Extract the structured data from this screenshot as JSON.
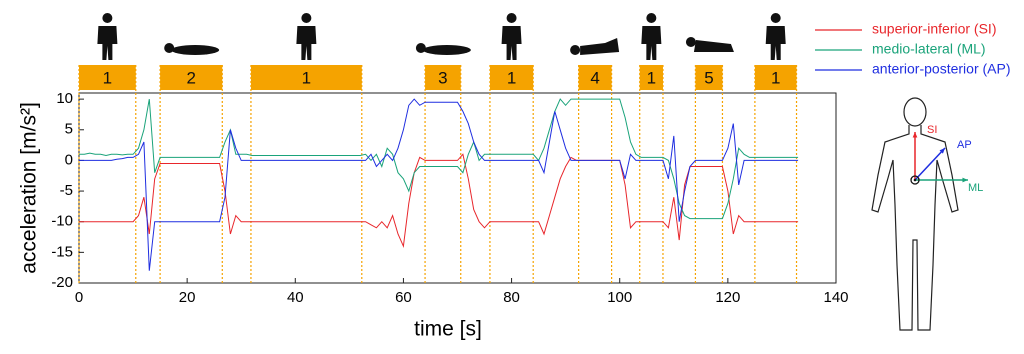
{
  "chart_data": {
    "type": "line",
    "x_label": "time [s]",
    "y_label": "acceleration [m/s²]",
    "xlim": [
      0,
      140
    ],
    "xticks": [
      0,
      20,
      40,
      60,
      80,
      100,
      120,
      140
    ],
    "ylim": [
      -20,
      11
    ],
    "yticks": [
      -20,
      -15,
      -10,
      -5,
      0,
      5,
      10
    ],
    "postures": [
      {
        "label": "1",
        "start": 0,
        "end": 10.5
      },
      {
        "label": "2",
        "start": 15,
        "end": 26.5
      },
      {
        "label": "1",
        "start": 31.8,
        "end": 52.3
      },
      {
        "label": "3",
        "start": 64,
        "end": 70.6
      },
      {
        "label": "1",
        "start": 76,
        "end": 84
      },
      {
        "label": "4",
        "start": 92.4,
        "end": 98.5
      },
      {
        "label": "1",
        "start": 103.7,
        "end": 108
      },
      {
        "label": "5",
        "start": 114,
        "end": 119
      },
      {
        "label": "1",
        "start": 125,
        "end": 132.7
      }
    ],
    "x": [
      0,
      1,
      2,
      3,
      4,
      5,
      6,
      7,
      8,
      9,
      10,
      11,
      12,
      13,
      14,
      15,
      16,
      17,
      18,
      19,
      20,
      21,
      22,
      23,
      24,
      25,
      26,
      27,
      28,
      29,
      30,
      31,
      32,
      33,
      34,
      35,
      36,
      37,
      38,
      39,
      40,
      41,
      42,
      43,
      44,
      45,
      46,
      47,
      48,
      49,
      50,
      51,
      52,
      53,
      54,
      55,
      56,
      57,
      58,
      59,
      60,
      61,
      62,
      63,
      64,
      65,
      66,
      67,
      68,
      69,
      70,
      71,
      72,
      73,
      74,
      75,
      76,
      77,
      78,
      79,
      80,
      81,
      82,
      83,
      84,
      85,
      86,
      87,
      88,
      89,
      90,
      91,
      92,
      93,
      94,
      95,
      96,
      97,
      98,
      99,
      100,
      101,
      102,
      103,
      104,
      105,
      106,
      107,
      108,
      109,
      110,
      111,
      112,
      113,
      114,
      115,
      116,
      117,
      118,
      119,
      120,
      121,
      122,
      123,
      124,
      125,
      126,
      127,
      128,
      129,
      130,
      131,
      132,
      133
    ],
    "series": [
      {
        "name": "superior-inferior (SI)",
        "color": "#e8262b",
        "values": [
          -10,
          -10,
          -10,
          -10,
          -10,
          -10,
          -10,
          -10,
          -10,
          -10,
          -10,
          -9,
          -6,
          -12,
          -3,
          -0.5,
          -0.5,
          -0.5,
          -0.5,
          -0.5,
          -0.5,
          -0.5,
          -0.5,
          -0.5,
          -0.5,
          -0.5,
          -0.5,
          -5,
          -12,
          -9,
          -10,
          -10,
          -10,
          -10,
          -10,
          -10,
          -10,
          -10,
          -10,
          -10,
          -10,
          -10,
          -10,
          -10,
          -10,
          -10,
          -10,
          -10,
          -10,
          -10,
          -10,
          -10,
          -10,
          -10,
          -10.5,
          -11,
          -10,
          -11,
          -9,
          -12,
          -14,
          -7,
          -2,
          0.5,
          0,
          0,
          0,
          0,
          0,
          0,
          0,
          1,
          -3,
          -8,
          -10,
          -11,
          -10,
          -10,
          -10,
          -10,
          -10,
          -10,
          -10,
          -10,
          -10,
          -10,
          -12,
          -9,
          -6,
          -3,
          -1,
          0.5,
          0,
          0,
          0,
          0,
          0,
          0,
          0,
          0,
          0,
          -4,
          -11,
          -10,
          -10,
          -10,
          -10,
          -10,
          -10,
          -11,
          -6,
          -13,
          -4,
          -1,
          -1,
          -1,
          -1,
          -1,
          -1,
          -1,
          -5,
          -12,
          -9,
          -10,
          -10,
          -10,
          -10,
          -10,
          -10,
          -10,
          -10,
          -10,
          -10,
          -10
        ]
      },
      {
        "name": "medio-lateral (ML)",
        "color": "#1aa37a",
        "values": [
          1,
          1,
          1.2,
          1,
          1,
          0.8,
          1,
          1,
          0.9,
          1,
          1,
          2,
          5,
          10,
          -2,
          0.5,
          0.5,
          0.5,
          0.5,
          0.5,
          0.5,
          0.5,
          0.5,
          0.5,
          0.5,
          0.5,
          0.5,
          3,
          5,
          1,
          1,
          1,
          0.8,
          0.8,
          0.8,
          0.8,
          0.8,
          0.8,
          0.8,
          0.8,
          0.8,
          0.8,
          0.8,
          0.8,
          0.8,
          0.8,
          0.8,
          0.8,
          0.8,
          0.8,
          0.8,
          0.8,
          0.8,
          1,
          0,
          1,
          -1,
          2,
          1,
          -2,
          -3,
          -5,
          -2,
          -1,
          -1,
          -1,
          -1,
          -1,
          -1,
          -1,
          -1,
          -2,
          1,
          3,
          0,
          1,
          1,
          1,
          1,
          1,
          1,
          1,
          1,
          1,
          1,
          0,
          2,
          5,
          8,
          10,
          9,
          10,
          10,
          10,
          10,
          10,
          10,
          10,
          10,
          10,
          10,
          7,
          3,
          1,
          0.5,
          0.5,
          0.5,
          0.5,
          0.5,
          0,
          -3,
          -7,
          -9,
          -9.5,
          -9.5,
          -9.5,
          -9.5,
          -9.5,
          -9.5,
          -9.5,
          -7,
          -3,
          2,
          1,
          0.5,
          0.5,
          0.5,
          0.5,
          0.5,
          0.5,
          0.5,
          0.5,
          0.5,
          0.5
        ]
      },
      {
        "name": "anterior-posterior (AP)",
        "color": "#1f2ee0",
        "values": [
          0,
          0,
          0,
          0,
          0,
          0,
          0,
          0.2,
          0.3,
          0.5,
          0.5,
          1,
          3,
          -18,
          -10,
          -10,
          -10,
          -10,
          -10,
          -10,
          -10,
          -10,
          -10,
          -10,
          -10,
          -10,
          -10,
          -6,
          5,
          2,
          0,
          0,
          0,
          0,
          0,
          0,
          0,
          0,
          0,
          0,
          0,
          0,
          0,
          0,
          0,
          0,
          0,
          0,
          0,
          0,
          0,
          0,
          0,
          0,
          1,
          -1,
          0,
          1,
          0,
          2,
          5,
          9,
          10,
          9,
          9.5,
          9.5,
          9.5,
          9.5,
          9.5,
          9.5,
          9.5,
          8,
          6,
          3,
          1,
          0,
          0,
          0,
          0,
          0,
          0,
          0,
          0,
          0,
          0,
          0,
          -2,
          3,
          8,
          5,
          2,
          0,
          0,
          0,
          0,
          0,
          0,
          0,
          0,
          0,
          0,
          -3,
          1,
          0,
          0,
          0,
          0,
          0,
          0,
          -3,
          4,
          -10,
          -5,
          -1,
          0,
          0,
          0,
          0,
          0,
          0,
          2,
          6,
          -4,
          0,
          0,
          0,
          0,
          0,
          0,
          0,
          0,
          0,
          0,
          0
        ]
      }
    ],
    "axis_labels": {
      "si": "SI",
      "ap": "AP",
      "ml": "ML"
    }
  }
}
